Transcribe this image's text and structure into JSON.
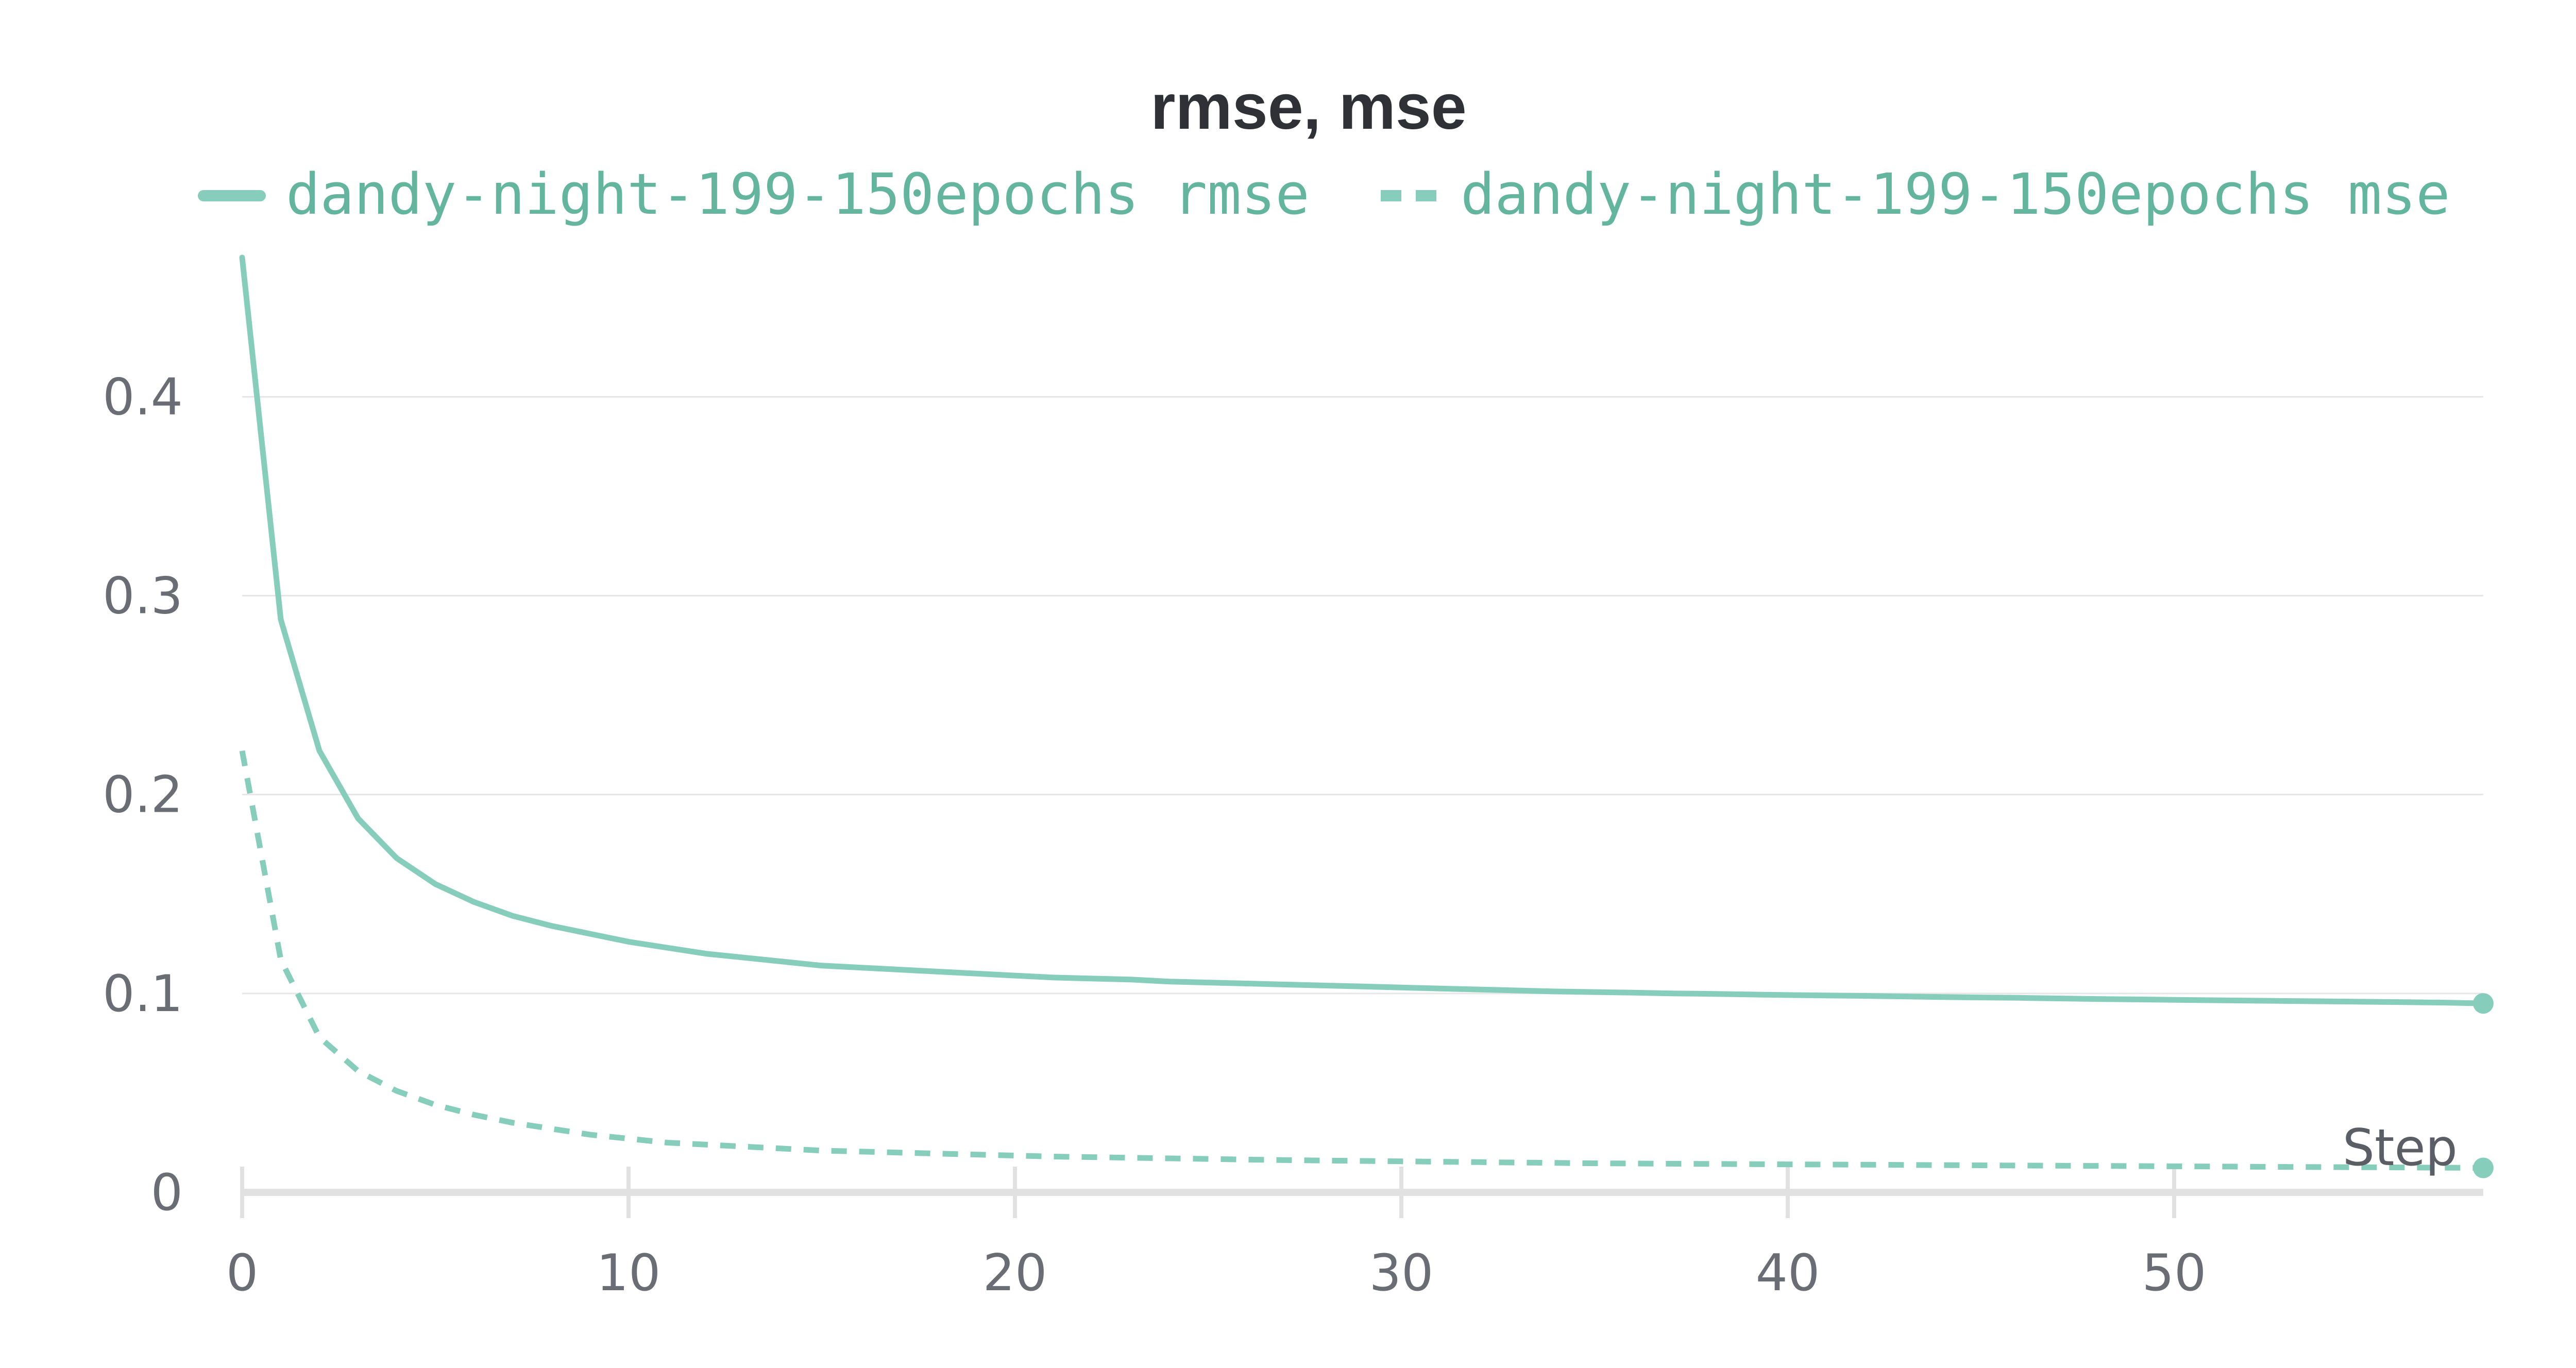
{
  "chart_data": {
    "type": "line",
    "title": "rmse, mse",
    "xlabel": "Step",
    "ylabel": "",
    "xlim": [
      0,
      58
    ],
    "ylim": [
      0,
      0.47
    ],
    "x_ticks": [
      0,
      10,
      20,
      30,
      40,
      50
    ],
    "y_ticks": [
      0,
      0.1,
      0.2,
      0.3,
      0.4
    ],
    "grid": true,
    "legend_position": "top",
    "x": [
      0,
      1,
      2,
      3,
      4,
      5,
      6,
      7,
      8,
      9,
      10,
      11,
      12,
      13,
      14,
      15,
      16,
      17,
      18,
      19,
      20,
      21,
      22,
      23,
      24,
      25,
      26,
      27,
      28,
      29,
      30,
      31,
      32,
      33,
      34,
      35,
      36,
      37,
      38,
      39,
      40,
      41,
      42,
      43,
      44,
      45,
      46,
      47,
      48,
      49,
      50,
      51,
      52,
      53,
      54,
      55,
      56,
      57,
      58
    ],
    "series": [
      {
        "name": "dandy-night-199-150epochs rmse",
        "color": "#86cdbb",
        "dash": "solid",
        "values": [
          0.47,
          0.288,
          0.222,
          0.188,
          0.168,
          0.155,
          0.146,
          0.139,
          0.134,
          0.13,
          0.126,
          0.123,
          0.12,
          0.118,
          0.116,
          0.114,
          0.113,
          0.112,
          0.111,
          0.11,
          0.109,
          0.108,
          0.1075,
          0.107,
          0.106,
          0.1055,
          0.105,
          0.1045,
          0.104,
          0.1035,
          0.103,
          0.1025,
          0.102,
          0.1015,
          0.101,
          0.1007,
          0.1004,
          0.1,
          0.0998,
          0.0995,
          0.0992,
          0.099,
          0.0988,
          0.0985,
          0.0982,
          0.098,
          0.0978,
          0.0975,
          0.0972,
          0.097,
          0.0968,
          0.0966,
          0.0964,
          0.0962,
          0.096,
          0.0958,
          0.0956,
          0.0954,
          0.095
        ]
      },
      {
        "name": "dandy-night-199-150epochs mse",
        "color": "#86cdbb",
        "dash": "dashed",
        "values": [
          0.222,
          0.117,
          0.078,
          0.061,
          0.051,
          0.044,
          0.039,
          0.035,
          0.032,
          0.029,
          0.027,
          0.025,
          0.024,
          0.023,
          0.022,
          0.021,
          0.0205,
          0.02,
          0.0195,
          0.019,
          0.0185,
          0.018,
          0.0177,
          0.0174,
          0.0171,
          0.0168,
          0.0165,
          0.0162,
          0.016,
          0.0158,
          0.0156,
          0.0154,
          0.0152,
          0.015,
          0.0148,
          0.0146,
          0.0145,
          0.0144,
          0.0143,
          0.0142,
          0.0141,
          0.014,
          0.0139,
          0.0138,
          0.0137,
          0.0136,
          0.0135,
          0.0134,
          0.0133,
          0.0132,
          0.0131,
          0.013,
          0.0129,
          0.0128,
          0.0127,
          0.0126,
          0.0125,
          0.0124,
          0.0123
        ]
      }
    ]
  }
}
